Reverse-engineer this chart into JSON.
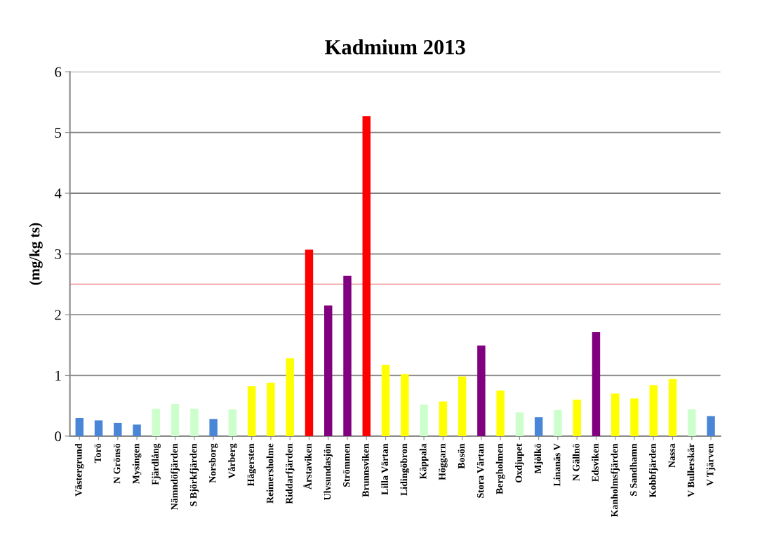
{
  "chart_data": {
    "type": "bar",
    "title": "Kadmium 2013",
    "ylabel": "(mg/kg ts)",
    "categories": [
      "Västergrund",
      "Torö",
      "N Grönsö",
      "Mysingen",
      "Fjärdlång",
      "Nämndöfjärden",
      "S Björkfjärden",
      "Norsborg",
      "Vårberg",
      "Hägersten",
      "Reimersholme",
      "Riddarfjärden",
      "Årstaviken",
      "Ulvsundasjön",
      "Strömmen",
      "Brunnsviken",
      "Lilla Värtan",
      "Lidingöbron",
      "Käppala",
      "Höggarn",
      "Bosön",
      "Stora Värtan",
      "Bergholmen",
      "Oxdjupet",
      "Mjölkö",
      "Linanäs V",
      "N Gällnö",
      "Edsviken",
      "Kanholmsfjärden",
      "S Sandhamn",
      "Kobbfjärden",
      "Nassa",
      "V Bullerskär",
      "V Tjärven"
    ],
    "values": [
      0.3,
      0.26,
      0.22,
      0.19,
      0.45,
      0.53,
      0.45,
      0.28,
      0.44,
      0.82,
      0.88,
      1.28,
      3.07,
      2.15,
      2.64,
      5.27,
      1.17,
      1.02,
      0.52,
      0.57,
      0.98,
      1.49,
      0.75,
      0.39,
      0.31,
      0.43,
      0.6,
      1.71,
      0.7,
      0.62,
      0.84,
      0.94,
      0.44,
      0.33
    ],
    "colors": [
      "#4a86d8",
      "#4a86d8",
      "#4a86d8",
      "#4a86d8",
      "#ccffcc",
      "#ccffcc",
      "#ccffcc",
      "#4a86d8",
      "#ccffcc",
      "#ffff00",
      "#ffff00",
      "#ffff00",
      "#ff0000",
      "#800080",
      "#800080",
      "#ff0000",
      "#ffff00",
      "#ffff00",
      "#ccffcc",
      "#ffff00",
      "#ffff00",
      "#800080",
      "#ffff00",
      "#ccffcc",
      "#4a86d8",
      "#ccffcc",
      "#ffff00",
      "#800080",
      "#ffff00",
      "#ffff00",
      "#ffff00",
      "#ffff00",
      "#ccffcc",
      "#4a86d8"
    ],
    "ylim": [
      0,
      6
    ],
    "yticks": [
      0,
      1,
      2,
      3,
      4,
      5,
      6
    ],
    "grid": "y",
    "legend": false,
    "ref_lines": [
      {
        "axis": "y",
        "value": 2.5,
        "color": "#f4a6a6"
      }
    ]
  }
}
